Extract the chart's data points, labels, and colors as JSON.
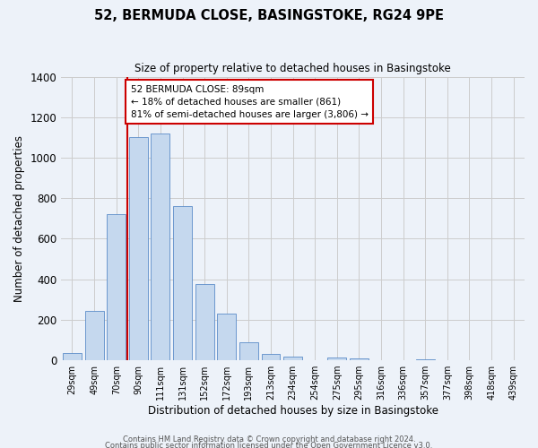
{
  "title": "52, BERMUDA CLOSE, BASINGSTOKE, RG24 9PE",
  "subtitle": "Size of property relative to detached houses in Basingstoke",
  "xlabel": "Distribution of detached houses by size in Basingstoke",
  "ylabel": "Number of detached properties",
  "bin_labels": [
    "29sqm",
    "49sqm",
    "70sqm",
    "90sqm",
    "111sqm",
    "131sqm",
    "152sqm",
    "172sqm",
    "193sqm",
    "213sqm",
    "234sqm",
    "254sqm",
    "275sqm",
    "295sqm",
    "316sqm",
    "336sqm",
    "357sqm",
    "377sqm",
    "398sqm",
    "418sqm",
    "439sqm"
  ],
  "bar_values": [
    35,
    245,
    720,
    1100,
    1120,
    760,
    375,
    230,
    90,
    30,
    20,
    0,
    15,
    10,
    0,
    0,
    5,
    0,
    0,
    0,
    0
  ],
  "bar_color": "#c5d8ee",
  "bar_edge_color": "#5b8cc8",
  "vline_color": "#cc0000",
  "annotation_text": "52 BERMUDA CLOSE: 89sqm\n← 18% of detached houses are smaller (861)\n81% of semi-detached houses are larger (3,806) →",
  "annotation_box_color": "#ffffff",
  "annotation_box_edge_color": "#cc0000",
  "ylim": [
    0,
    1400
  ],
  "yticks": [
    0,
    200,
    400,
    600,
    800,
    1000,
    1200,
    1400
  ],
  "grid_color": "#cccccc",
  "bg_color": "#edf2f9",
  "footer1": "Contains HM Land Registry data © Crown copyright and database right 2024.",
  "footer2": "Contains public sector information licensed under the Open Government Licence v3.0."
}
